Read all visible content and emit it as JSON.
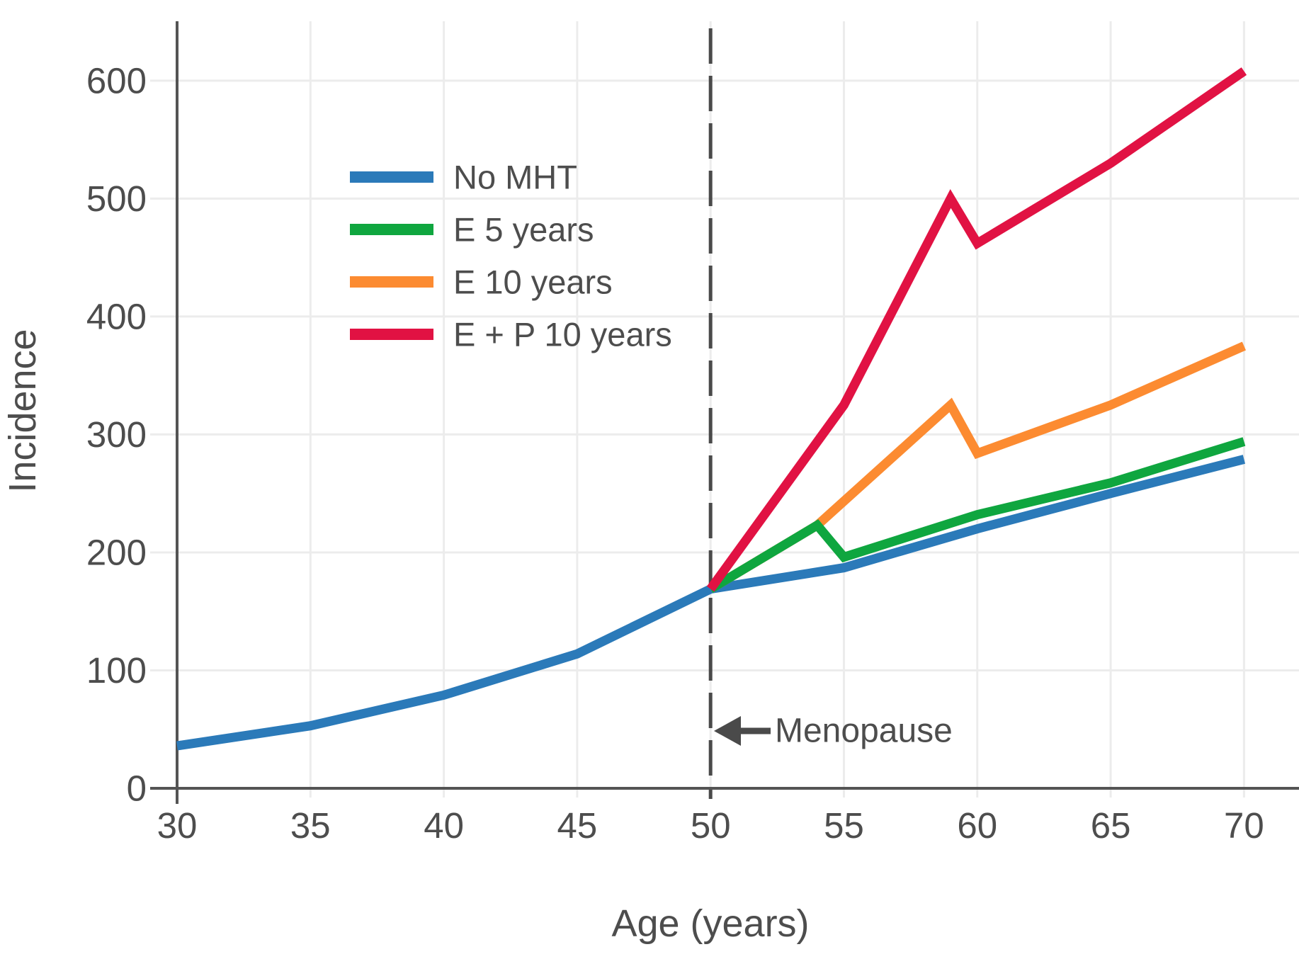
{
  "chart_data": {
    "type": "line",
    "title": "",
    "xlabel": "Age (years)",
    "ylabel": "Incidence",
    "xlim": [
      30,
      70
    ],
    "ylim": [
      0,
      650
    ],
    "x_ticks": [
      30,
      35,
      40,
      45,
      50,
      55,
      60,
      65,
      70
    ],
    "y_ticks": [
      0,
      100,
      200,
      300,
      400,
      500,
      600
    ],
    "grid": true,
    "legend_position": "upper-left-inside",
    "series": [
      {
        "name": "No MHT",
        "color": "#2b7ab9",
        "points": [
          [
            30,
            36
          ],
          [
            35,
            53
          ],
          [
            40,
            79
          ],
          [
            45,
            114
          ],
          [
            50,
            169
          ],
          [
            55,
            187
          ],
          [
            60,
            220
          ],
          [
            65,
            250
          ],
          [
            70,
            279
          ]
        ]
      },
      {
        "name": "E 5 years",
        "color": "#0fa63f",
        "points": [
          [
            50,
            169
          ],
          [
            54,
            223
          ],
          [
            55,
            196
          ],
          [
            60,
            232
          ],
          [
            65,
            259
          ],
          [
            70,
            294
          ]
        ]
      },
      {
        "name": "E 10 years",
        "color": "#fc8b31",
        "points": [
          [
            50,
            169
          ],
          [
            54,
            223
          ],
          [
            59,
            325
          ],
          [
            60,
            284
          ],
          [
            65,
            325
          ],
          [
            70,
            375
          ]
        ]
      },
      {
        "name": "E + P 10 years",
        "color": "#e11243",
        "points": [
          [
            50,
            169
          ],
          [
            55,
            325
          ],
          [
            59,
            500
          ],
          [
            60,
            462
          ],
          [
            65,
            530
          ],
          [
            70,
            608
          ]
        ]
      }
    ],
    "annotation": {
      "label": "Menopause",
      "x": 50,
      "arrow_direction": "left"
    },
    "vline": {
      "x": 50,
      "style": "dashed"
    }
  },
  "colors": {
    "background": "#ffffff",
    "grid": "#ececec",
    "axis": "#545454",
    "text": "#4d4d4d",
    "annotation": "#4a4a4a"
  }
}
